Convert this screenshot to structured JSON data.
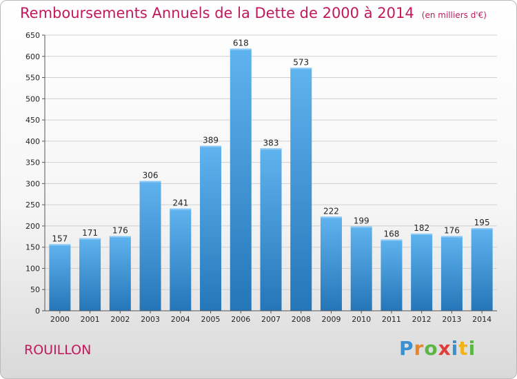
{
  "chart_data": {
    "type": "bar",
    "title": "Remboursements Annuels de la Dette de 2000 à 2014",
    "subtitle": "(en milliers d'€)",
    "xlabel": "",
    "ylabel": "",
    "categories": [
      "2000",
      "2001",
      "2002",
      "2003",
      "2004",
      "2005",
      "2006",
      "2007",
      "2008",
      "2009",
      "2010",
      "2011",
      "2012",
      "2013",
      "2014"
    ],
    "values": [
      157,
      171,
      176,
      306,
      241,
      389,
      618,
      383,
      573,
      222,
      199,
      168,
      182,
      176,
      195
    ],
    "ylim": [
      0,
      650
    ],
    "yticks": [
      0,
      50,
      100,
      150,
      200,
      250,
      300,
      350,
      400,
      450,
      500,
      550,
      600,
      650
    ],
    "grid": true,
    "bar_color": "#3d9ae0"
  },
  "footer": {
    "commune": "ROUILLON",
    "logo": {
      "letters": [
        "P",
        "r",
        "o",
        "x",
        "i",
        "t",
        "i"
      ],
      "colors": [
        "#3a8fd0",
        "#e8852a",
        "#5bb645",
        "#e23b3b",
        "#3a8fd0",
        "#f0b418",
        "#5bb645"
      ]
    }
  }
}
